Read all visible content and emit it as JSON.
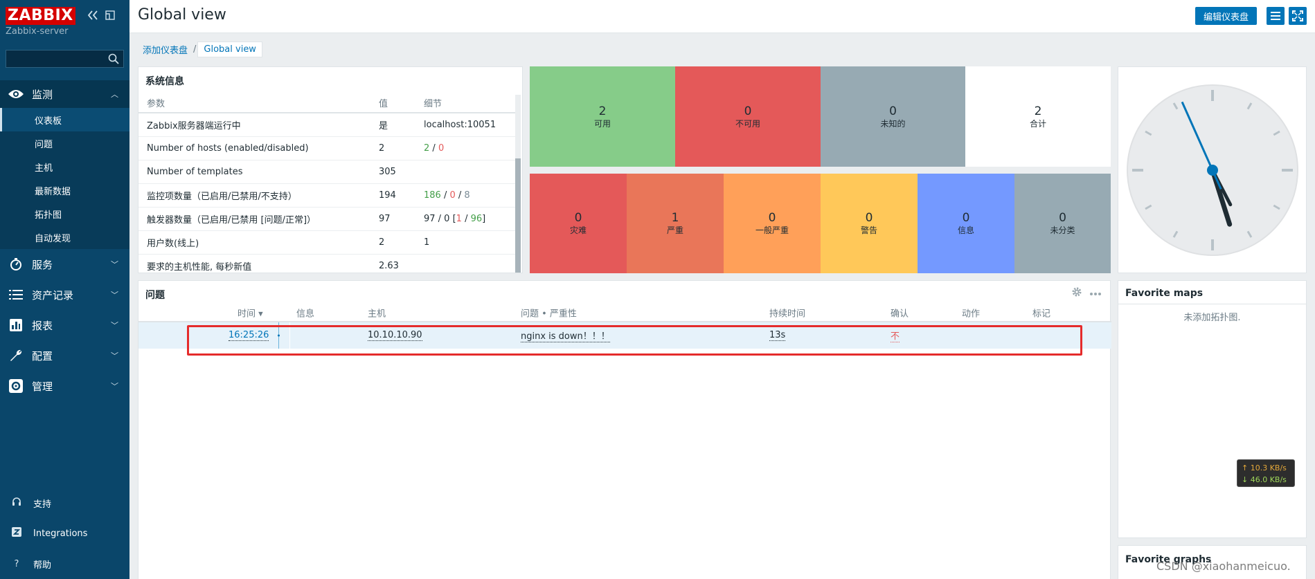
{
  "sidebar": {
    "logo": "ZABBIX",
    "server": "Zabbix-server",
    "search_placeholder": "",
    "menu": [
      {
        "label": "监测",
        "icon": "eye-icon"
      },
      {
        "label": "服务",
        "icon": "clock-icon"
      },
      {
        "label": "资产记录",
        "icon": "list-icon"
      },
      {
        "label": "报表",
        "icon": "bar-chart-icon"
      },
      {
        "label": "配置",
        "icon": "wrench-icon"
      },
      {
        "label": "管理",
        "icon": "gear-icon"
      }
    ],
    "submenu": [
      "仪表板",
      "问题",
      "主机",
      "最新数据",
      "拓扑图",
      "自动发现"
    ],
    "bottom": [
      {
        "label": "支持",
        "icon": "headset-icon"
      },
      {
        "label": "Integrations",
        "icon": "z-icon"
      },
      {
        "label": "帮助",
        "icon": "question-icon"
      }
    ]
  },
  "header": {
    "title": "Global view",
    "edit_button": "编辑仪表盘"
  },
  "breadcrumb": {
    "parent": "添加仪表盘",
    "separator": "/",
    "current": "Global view"
  },
  "sysinfo": {
    "title": "系统信息",
    "columns": [
      "参数",
      "值",
      "细节"
    ],
    "rows": [
      {
        "param": "Zabbix服务器端运行中",
        "value": "是",
        "detail": "localhost:10051"
      },
      {
        "param": "Number of hosts (enabled/disabled)",
        "value": "2",
        "d1": "2",
        "sep1": " / ",
        "d2": "0"
      },
      {
        "param": "Number of templates",
        "value": "305",
        "detail": ""
      },
      {
        "param": "监控项数量（已启用/已禁用/不支持）",
        "value": "194",
        "d1": "186",
        "sep1": " / ",
        "d2": "0",
        "sep2": " / ",
        "d3": "8"
      },
      {
        "param": "触发器数量（已启用/已禁用 [问题/正常]）",
        "value": "97",
        "pre": "97 / 0 [",
        "d1": "1",
        "sep1": " / ",
        "d2": "96",
        "post": "]"
      },
      {
        "param": "用户数(线上)",
        "value": "2",
        "d1": "1"
      },
      {
        "param": "要求的主机性能, 每秒新值",
        "value": "2.63",
        "detail": ""
      }
    ]
  },
  "availability": [
    {
      "num": "2",
      "label": "可用",
      "color": "#86cc89"
    },
    {
      "num": "0",
      "label": "不可用",
      "color": "#e45959"
    },
    {
      "num": "0",
      "label": "未知的",
      "color": "#97aab3"
    },
    {
      "num": "2",
      "label": "合计",
      "color": "#ffffff"
    }
  ],
  "severity": [
    {
      "num": "0",
      "label": "灾难",
      "color": "#e45959"
    },
    {
      "num": "1",
      "label": "严重",
      "color": "#e97659"
    },
    {
      "num": "0",
      "label": "一般严重",
      "color": "#ffa059"
    },
    {
      "num": "0",
      "label": "警告",
      "color": "#ffc859"
    },
    {
      "num": "0",
      "label": "信息",
      "color": "#7499ff"
    },
    {
      "num": "0",
      "label": "未分类",
      "color": "#97aab3"
    }
  ],
  "clock": {
    "hour": 5,
    "minute": 25,
    "second": 26
  },
  "problems": {
    "title": "问题",
    "columns": {
      "time": "时间 ▾",
      "info": "信息",
      "host": "主机",
      "problem": "问题 • 严重性",
      "duration": "持续时间",
      "ack": "确认",
      "actions": "动作",
      "tags": "标记"
    },
    "rows": [
      {
        "time": "16:25:26",
        "host": "10.10.10.90",
        "problem": "nginx is down！！！",
        "duration": "13s",
        "ack": "不"
      }
    ]
  },
  "favmaps": {
    "title": "Favorite maps",
    "empty": "未添加拓扑图."
  },
  "favgraphs": {
    "title": "Favorite graphs"
  },
  "network": {
    "up": "↑ 10.3 KB/s",
    "down": "↓ 46.0 KB/s"
  },
  "watermark": "CSDN @xiaohanmeicuo."
}
